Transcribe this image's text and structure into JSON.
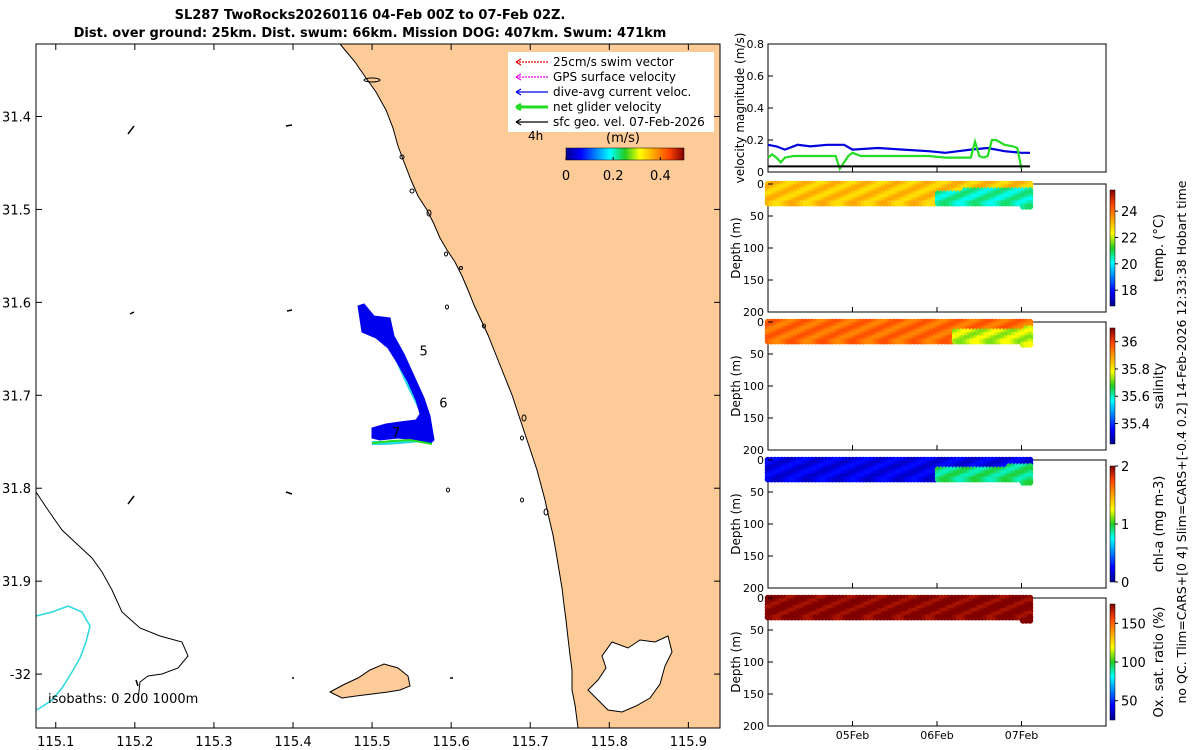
{
  "title_line1": "SL287 TwoRocks20260116 04-Feb 00Z to 07-Feb 02Z.",
  "title_line2": "Dist. over ground: 25km. Dist. swum: 66km. Mission DOG: 407km. Swum: 471km",
  "colors": {
    "land": "#fccb97",
    "track": "#0000ee",
    "track_outline": "#2bd9e0",
    "net_velocity": "#22dd22",
    "dive_avg": "#0000dd",
    "ref_line": "#000000",
    "isobath_200": "#2bd9e0"
  },
  "chart_data": [
    {
      "type": "map",
      "legend": [
        {
          "label": "25cm/s swim vector",
          "color": "#ee0000",
          "style": "dotted"
        },
        {
          "label": "GPS surface velocity",
          "color": "#ee00ee",
          "style": "dotted"
        },
        {
          "label": "dive-avg current veloc.",
          "color": "#0000dd",
          "style": "solid"
        },
        {
          "label": "net glider velocity",
          "color": "#22dd22",
          "style": "thick"
        },
        {
          "label": "sfc geo. vel. 07-Feb-2026",
          "color": "#000000",
          "style": "solid"
        }
      ],
      "legend_extra": "4h",
      "colorbar": {
        "label": "(m/s)",
        "ticks": [
          0,
          0.2,
          0.4
        ],
        "range": [
          0,
          0.5
        ]
      },
      "xticks": [
        115.1,
        115.2,
        115.3,
        115.4,
        115.5,
        115.6,
        115.7,
        115.8,
        115.9
      ],
      "xlim": [
        115.075,
        115.94
      ],
      "yticks": [
        31.4,
        31.5,
        31.6,
        31.7,
        31.8,
        31.9,
        -32
      ],
      "ylim": [
        31.322,
        32.058
      ],
      "track_day_labels": [
        {
          "label": "5",
          "lon": 115.56,
          "lat": 31.657
        },
        {
          "label": "6",
          "lon": 115.585,
          "lat": 31.713
        },
        {
          "label": "7",
          "lon": 115.525,
          "lat": 31.745
        }
      ],
      "isobath_text": "isobaths: 0   200  1000m"
    },
    {
      "type": "line",
      "ylabel": "velocity magnitude (m/s)",
      "ylim": [
        0,
        0.8
      ],
      "yticks": [
        0,
        0.2,
        0.4,
        0.6,
        0.8
      ],
      "xlim": [
        4.0,
        8.0
      ],
      "series": [
        {
          "name": "dive-avg current",
          "color": "#0000dd",
          "x": [
            4.0,
            4.1,
            4.2,
            4.35,
            4.5,
            4.7,
            4.9,
            5.0,
            5.3,
            5.6,
            5.9,
            6.1,
            6.25,
            6.4,
            6.6,
            6.8,
            7.0,
            7.1
          ],
          "y": [
            0.17,
            0.16,
            0.14,
            0.17,
            0.16,
            0.17,
            0.17,
            0.14,
            0.15,
            0.14,
            0.13,
            0.12,
            0.13,
            0.14,
            0.15,
            0.13,
            0.12,
            0.12
          ]
        },
        {
          "name": "net glider velocity",
          "color": "#22dd22",
          "x": [
            4.0,
            4.05,
            4.1,
            4.15,
            4.2,
            4.3,
            4.5,
            4.8,
            4.85,
            4.95,
            5.0,
            5.1,
            5.4,
            5.7,
            5.9,
            6.1,
            6.3,
            6.4,
            6.45,
            6.5,
            6.55,
            6.6,
            6.65,
            6.7,
            6.8,
            6.9,
            6.95,
            7.0
          ],
          "y": [
            0.09,
            0.11,
            0.09,
            0.06,
            0.09,
            0.1,
            0.1,
            0.1,
            0.02,
            0.1,
            0.12,
            0.1,
            0.1,
            0.1,
            0.1,
            0.09,
            0.09,
            0.09,
            0.19,
            0.1,
            0.09,
            0.1,
            0.2,
            0.2,
            0.17,
            0.16,
            0.15,
            0.02
          ]
        },
        {
          "name": "reference",
          "color": "#000000",
          "x": [
            4.0,
            7.1
          ],
          "y": [
            0.035,
            0.035
          ]
        }
      ]
    },
    {
      "type": "heatmap",
      "ylabel": "Depth (m)",
      "colorbar_label": "temp. (°C)",
      "clim": [
        16.8,
        25.6
      ],
      "cticks": [
        18,
        20,
        22,
        24
      ],
      "yticks": [
        0,
        50,
        100,
        150,
        200
      ],
      "ylim": [
        0,
        200
      ],
      "xlim": [
        4.0,
        8.0
      ],
      "data_x_range": [
        4.0,
        7.1
      ],
      "data_depth_max": 30,
      "surface_value": 23.0,
      "anomaly": {
        "x_start": 6.0,
        "depth_start": 12,
        "value": 20.5
      }
    },
    {
      "type": "heatmap",
      "ylabel": "Depth (m)",
      "colorbar_label": "salinity",
      "clim": [
        35.25,
        36.1
      ],
      "cticks": [
        35.4,
        35.6,
        35.8,
        36
      ],
      "yticks": [
        0,
        50,
        100,
        150,
        200
      ],
      "ylim": [
        0,
        200
      ],
      "xlim": [
        4.0,
        8.0
      ],
      "data_x_range": [
        4.0,
        7.1
      ],
      "data_depth_max": 30,
      "surface_value": 35.95,
      "anomaly": {
        "x_start": 6.2,
        "depth_start": 15,
        "value": 35.75
      }
    },
    {
      "type": "heatmap",
      "ylabel": "Depth (m)",
      "colorbar_label": "chl-a (mg m-3)",
      "clim": [
        0,
        2
      ],
      "cticks": [
        0,
        1,
        2
      ],
      "yticks": [
        0,
        50,
        100,
        150,
        200
      ],
      "ylim": [
        0,
        200
      ],
      "xlim": [
        4.0,
        8.0
      ],
      "data_x_range": [
        4.0,
        7.1
      ],
      "data_depth_max": 30,
      "surface_value": 0.2,
      "anomaly": {
        "x_start": 6.0,
        "depth_start": 15,
        "value": 0.9
      }
    },
    {
      "type": "heatmap",
      "ylabel": "Depth (m)",
      "colorbar_label": "Ox. sat. ratio (%)",
      "clim": [
        25,
        175
      ],
      "cticks": [
        50,
        100,
        150
      ],
      "yticks": [
        0,
        50,
        100,
        150,
        200
      ],
      "ylim": [
        0,
        200
      ],
      "xlim": [
        4.0,
        8.0
      ],
      "data_x_range": [
        4.0,
        7.1
      ],
      "data_depth_max": 30,
      "surface_value": 175,
      "anomaly": null
    }
  ],
  "time_axis": {
    "ticks": [
      {
        "x": 5,
        "label": "05Feb"
      },
      {
        "x": 6,
        "label": "06Feb"
      },
      {
        "x": 7,
        "label": "07Feb"
      }
    ]
  },
  "side_note": "no QC. Tlim=CARS+[0 4] Slim=CARS+[-0.4 0.2] 14-Feb-2026 12:33:38 Hobart time"
}
